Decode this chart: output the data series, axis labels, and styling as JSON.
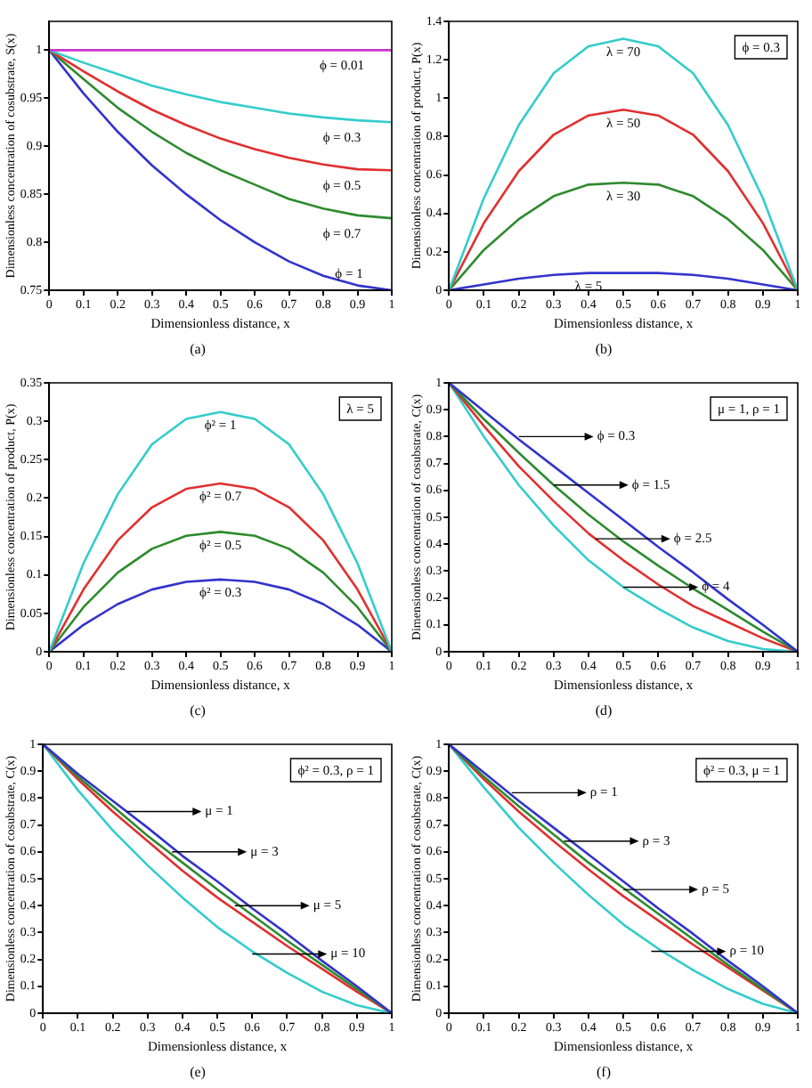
{
  "chart_data": [
    {
      "type": "line",
      "title": "(a)",
      "xlabel": "Dimensionless distance, x",
      "ylabel": "Dimensionless concentration of cosubstrate, S(x)",
      "xlim": [
        0,
        1
      ],
      "ylim": [
        0.75,
        1.03
      ],
      "xticks": [
        0,
        0.1,
        0.2,
        0.3,
        0.4,
        0.5,
        0.6,
        0.7,
        0.8,
        0.9,
        1
      ],
      "yticks": [
        0.75,
        0.8,
        0.85,
        0.9,
        0.95,
        1
      ],
      "grid": false,
      "legend": false,
      "marker": "none",
      "line_style": "solid",
      "x": [
        0,
        0.1,
        0.2,
        0.3,
        0.4,
        0.5,
        0.6,
        0.7,
        0.8,
        0.9,
        1
      ],
      "series": [
        {
          "name": "ϕ = 0.01",
          "color": "#cc33cc",
          "values": [
            1,
            1,
            1,
            1,
            1,
            1,
            1,
            1,
            1,
            1,
            1
          ]
        },
        {
          "name": "ϕ = 0.3",
          "color": "#33cccc",
          "values": [
            1,
            0.987,
            0.975,
            0.963,
            0.954,
            0.946,
            0.94,
            0.934,
            0.93,
            0.927,
            0.925
          ]
        },
        {
          "name": "ϕ = 0.5",
          "color": "#e03030",
          "values": [
            1,
            0.978,
            0.957,
            0.938,
            0.922,
            0.908,
            0.897,
            0.888,
            0.881,
            0.876,
            0.875
          ]
        },
        {
          "name": "ϕ = 0.7",
          "color": "#2e8b2e",
          "values": [
            1,
            0.97,
            0.94,
            0.915,
            0.893,
            0.875,
            0.86,
            0.845,
            0.835,
            0.828,
            0.825
          ]
        },
        {
          "name": "ϕ = 1",
          "color": "#3333cc",
          "values": [
            1,
            0.955,
            0.915,
            0.88,
            0.85,
            0.823,
            0.8,
            0.78,
            0.765,
            0.755,
            0.75
          ]
        }
      ]
    },
    {
      "type": "line",
      "title": "(b)",
      "xlabel": "Dimensionless distance, x",
      "ylabel": "Dimensionless concentration of product, P(x)",
      "xlim": [
        0,
        1
      ],
      "ylim": [
        0,
        1.4
      ],
      "xticks": [
        0,
        0.1,
        0.2,
        0.3,
        0.4,
        0.5,
        0.6,
        0.7,
        0.8,
        0.9,
        1
      ],
      "yticks": [
        0,
        0.2,
        0.4,
        0.6,
        0.8,
        1,
        1.2,
        1.4
      ],
      "grid": false,
      "legend": false,
      "marker": "none",
      "line_style": "solid",
      "annotations": [
        "ϕ = 0.3"
      ],
      "x": [
        0,
        0.1,
        0.2,
        0.3,
        0.4,
        0.5,
        0.6,
        0.7,
        0.8,
        0.9,
        1
      ],
      "series": [
        {
          "name": "λ = 70",
          "color": "#33cccc",
          "values": [
            0,
            0.48,
            0.86,
            1.13,
            1.27,
            1.31,
            1.27,
            1.13,
            0.86,
            0.48,
            0
          ]
        },
        {
          "name": "λ = 50",
          "color": "#e03030",
          "values": [
            0,
            0.35,
            0.62,
            0.81,
            0.91,
            0.94,
            0.91,
            0.81,
            0.62,
            0.35,
            0
          ]
        },
        {
          "name": "λ = 30",
          "color": "#2e8b2e",
          "values": [
            0,
            0.21,
            0.37,
            0.49,
            0.55,
            0.56,
            0.55,
            0.49,
            0.37,
            0.21,
            0
          ]
        },
        {
          "name": "λ = 5",
          "color": "#3333cc",
          "values": [
            0,
            0.03,
            0.06,
            0.08,
            0.09,
            0.09,
            0.09,
            0.08,
            0.06,
            0.03,
            0
          ]
        }
      ]
    },
    {
      "type": "line",
      "title": "(c)",
      "xlabel": "Dimensionless distance, x",
      "ylabel": "Dimensionless concentration of product, P(x)",
      "xlim": [
        0,
        1
      ],
      "ylim": [
        0,
        0.35
      ],
      "xticks": [
        0,
        0.1,
        0.2,
        0.3,
        0.4,
        0.5,
        0.6,
        0.7,
        0.8,
        0.9,
        1
      ],
      "yticks": [
        0,
        0.05,
        0.1,
        0.15,
        0.2,
        0.25,
        0.3,
        0.35
      ],
      "grid": false,
      "legend": false,
      "marker": "none",
      "line_style": "solid",
      "annotations": [
        "λ = 5"
      ],
      "x": [
        0,
        0.1,
        0.2,
        0.3,
        0.4,
        0.5,
        0.6,
        0.7,
        0.8,
        0.9,
        1
      ],
      "series": [
        {
          "name": "ϕ² = 1",
          "color": "#33cccc",
          "values": [
            0,
            0.115,
            0.205,
            0.27,
            0.303,
            0.312,
            0.303,
            0.27,
            0.205,
            0.115,
            0
          ]
        },
        {
          "name": "ϕ² = 0.7",
          "color": "#e03030",
          "values": [
            0,
            0.081,
            0.145,
            0.188,
            0.212,
            0.219,
            0.212,
            0.188,
            0.145,
            0.081,
            0
          ]
        },
        {
          "name": "ϕ² = 0.5",
          "color": "#2e8b2e",
          "values": [
            0,
            0.058,
            0.103,
            0.134,
            0.151,
            0.156,
            0.151,
            0.134,
            0.103,
            0.058,
            0
          ]
        },
        {
          "name": "ϕ² = 0.3",
          "color": "#3333cc",
          "values": [
            0,
            0.035,
            0.062,
            0.081,
            0.091,
            0.094,
            0.091,
            0.081,
            0.062,
            0.035,
            0
          ]
        }
      ]
    },
    {
      "type": "line",
      "title": "(d)",
      "xlabel": "Dimensionless distance, x",
      "ylabel": "Dimensionless concentration of cosubstrate, C(x)",
      "xlim": [
        0,
        1
      ],
      "ylim": [
        0,
        1
      ],
      "xticks": [
        0,
        0.1,
        0.2,
        0.3,
        0.4,
        0.5,
        0.6,
        0.7,
        0.8,
        0.9,
        1
      ],
      "yticks": [
        0,
        0.1,
        0.2,
        0.3,
        0.4,
        0.5,
        0.6,
        0.7,
        0.8,
        0.9,
        1
      ],
      "grid": false,
      "legend": false,
      "marker": "none",
      "line_style": "solid",
      "annotations": [
        "μ = 1, ρ = 1",
        {
          "text": "ϕ = 0.3",
          "x": 0.2,
          "y": 0.8
        },
        {
          "text": "ϕ = 1.5",
          "x": 0.3,
          "y": 0.62
        },
        {
          "text": "ϕ = 2.5",
          "x": 0.42,
          "y": 0.42
        },
        {
          "text": "ϕ = 4",
          "x": 0.5,
          "y": 0.24
        }
      ],
      "x": [
        0,
        0.1,
        0.2,
        0.3,
        0.4,
        0.5,
        0.6,
        0.7,
        0.8,
        0.9,
        1
      ],
      "series": [
        {
          "color": "#3333cc",
          "values": [
            1,
            0.895,
            0.79,
            0.69,
            0.59,
            0.49,
            0.39,
            0.295,
            0.195,
            0.1,
            0
          ]
        },
        {
          "color": "#2e8b2e",
          "values": [
            1,
            0.865,
            0.74,
            0.62,
            0.51,
            0.41,
            0.32,
            0.235,
            0.155,
            0.075,
            0
          ]
        },
        {
          "color": "#e03030",
          "values": [
            1,
            0.84,
            0.69,
            0.56,
            0.44,
            0.34,
            0.25,
            0.17,
            0.11,
            0.05,
            0
          ]
        },
        {
          "color": "#33cccc",
          "values": [
            1,
            0.8,
            0.62,
            0.47,
            0.34,
            0.24,
            0.16,
            0.09,
            0.04,
            0.01,
            0
          ]
        }
      ]
    },
    {
      "type": "line",
      "title": "(e)",
      "xlabel": "Dimensionless distance, x",
      "ylabel": "Dimensionless concentration of cosubstrate, C(x)",
      "xlim": [
        0,
        1
      ],
      "ylim": [
        0,
        1
      ],
      "xticks": [
        0,
        0.1,
        0.2,
        0.3,
        0.4,
        0.5,
        0.6,
        0.7,
        0.8,
        0.9,
        1
      ],
      "yticks": [
        0,
        0.1,
        0.2,
        0.3,
        0.4,
        0.5,
        0.6,
        0.7,
        0.8,
        0.9,
        1
      ],
      "grid": false,
      "legend": false,
      "marker": "none",
      "line_style": "solid",
      "annotations": [
        "ϕ² = 0.3, ρ = 1",
        {
          "text": "μ = 1",
          "x": 0.24,
          "y": 0.75
        },
        {
          "text": "μ = 3",
          "x": 0.37,
          "y": 0.6
        },
        {
          "text": "μ = 5",
          "x": 0.55,
          "y": 0.4
        },
        {
          "text": "μ = 10",
          "x": 0.6,
          "y": 0.22
        }
      ],
      "x": [
        0,
        0.1,
        0.2,
        0.3,
        0.4,
        0.5,
        0.6,
        0.7,
        0.8,
        0.9,
        1
      ],
      "series": [
        {
          "color": "#3333cc",
          "values": [
            1,
            0.89,
            0.79,
            0.69,
            0.585,
            0.49,
            0.39,
            0.295,
            0.195,
            0.1,
            0
          ]
        },
        {
          "color": "#2e8b2e",
          "values": [
            1,
            0.88,
            0.77,
            0.66,
            0.56,
            0.46,
            0.365,
            0.27,
            0.18,
            0.09,
            0
          ]
        },
        {
          "color": "#e03030",
          "values": [
            1,
            0.87,
            0.75,
            0.64,
            0.53,
            0.43,
            0.34,
            0.25,
            0.165,
            0.08,
            0
          ]
        },
        {
          "color": "#33cccc",
          "values": [
            1,
            0.83,
            0.68,
            0.55,
            0.43,
            0.32,
            0.23,
            0.15,
            0.08,
            0.03,
            0
          ]
        }
      ]
    },
    {
      "type": "line",
      "title": "(f)",
      "xlabel": "Dimensionless distance, x",
      "ylabel": "Dimensionless concentration of cosubstrate, C(x)",
      "xlim": [
        0,
        1
      ],
      "ylim": [
        0,
        1
      ],
      "xticks": [
        0,
        0.1,
        0.2,
        0.3,
        0.4,
        0.5,
        0.6,
        0.7,
        0.8,
        0.9,
        1
      ],
      "yticks": [
        0,
        0.1,
        0.2,
        0.3,
        0.4,
        0.5,
        0.6,
        0.7,
        0.8,
        0.9,
        1
      ],
      "grid": false,
      "legend": false,
      "marker": "none",
      "line_style": "solid",
      "annotations": [
        "ϕ² = 0.3, μ = 1",
        {
          "text": "ρ = 1",
          "x": 0.18,
          "y": 0.82
        },
        {
          "text": "ρ = 3",
          "x": 0.33,
          "y": 0.64
        },
        {
          "text": "ρ = 5",
          "x": 0.5,
          "y": 0.46
        },
        {
          "text": "ρ = 10",
          "x": 0.58,
          "y": 0.23
        }
      ],
      "x": [
        0,
        0.1,
        0.2,
        0.3,
        0.4,
        0.5,
        0.6,
        0.7,
        0.8,
        0.9,
        1
      ],
      "series": [
        {
          "color": "#3333cc",
          "values": [
            1,
            0.895,
            0.79,
            0.69,
            0.59,
            0.49,
            0.39,
            0.295,
            0.195,
            0.1,
            0
          ]
        },
        {
          "color": "#2e8b2e",
          "values": [
            1,
            0.88,
            0.77,
            0.665,
            0.56,
            0.465,
            0.37,
            0.275,
            0.18,
            0.09,
            0
          ]
        },
        {
          "color": "#e03030",
          "values": [
            1,
            0.87,
            0.75,
            0.64,
            0.535,
            0.435,
            0.345,
            0.255,
            0.17,
            0.085,
            0
          ]
        },
        {
          "color": "#33cccc",
          "values": [
            1,
            0.84,
            0.69,
            0.56,
            0.44,
            0.33,
            0.24,
            0.16,
            0.09,
            0.035,
            0
          ]
        }
      ]
    }
  ]
}
